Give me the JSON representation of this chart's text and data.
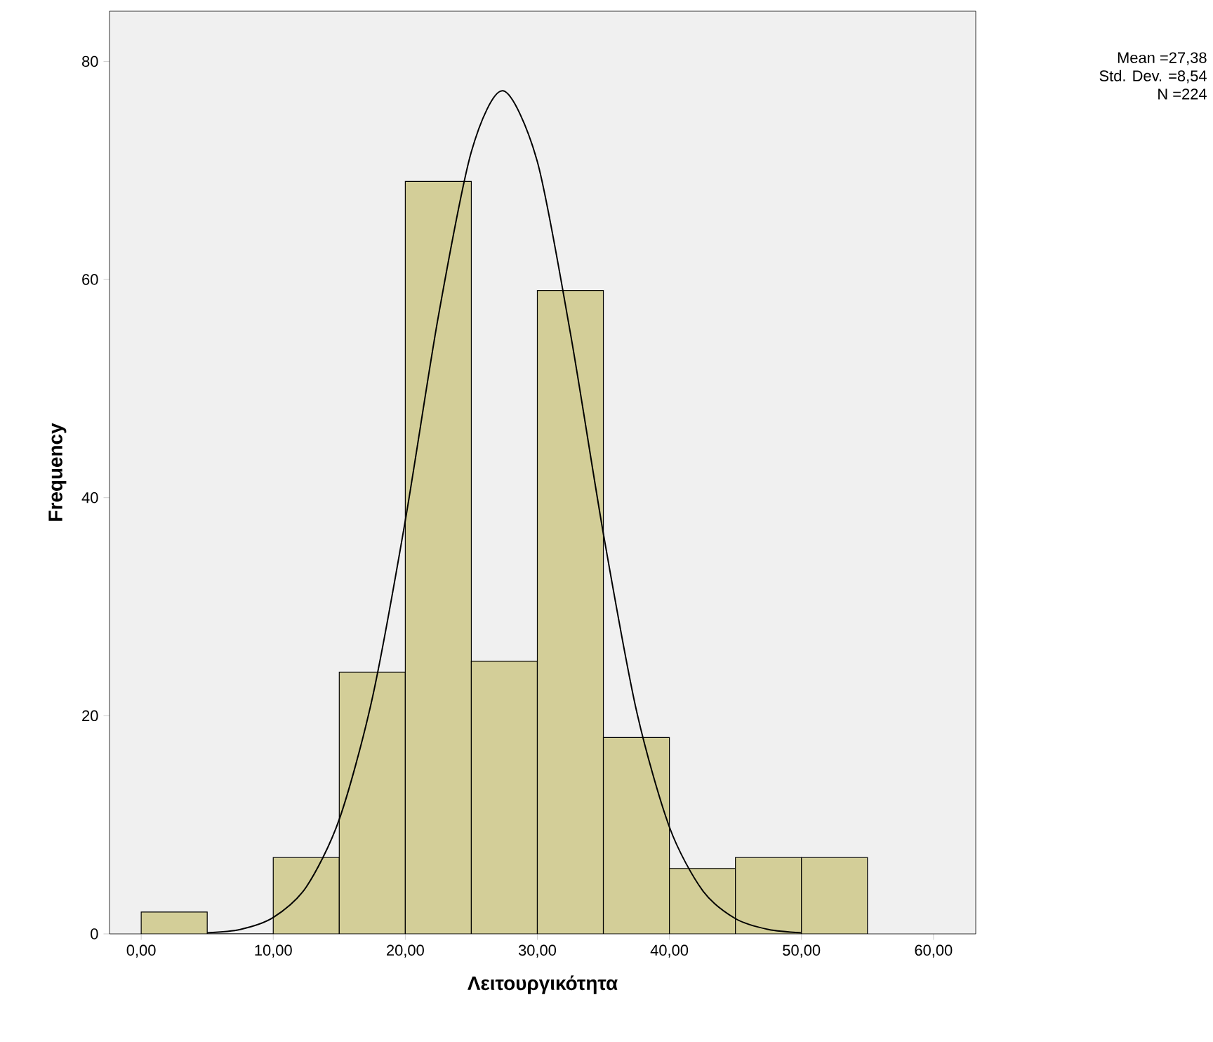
{
  "chart_data": {
    "type": "histogram",
    "xlabel": "Λειτουργικότητα",
    "ylabel": "Frequency",
    "annotations": [
      "Mean =27,38",
      "Std. Dev. =8,54",
      "N =224"
    ],
    "xlim": [
      -2.4,
      63.2
    ],
    "ylim": [
      0,
      84.6
    ],
    "xticks": [
      {
        "value": 0,
        "label": "0,00"
      },
      {
        "value": 10,
        "label": "10,00"
      },
      {
        "value": 20,
        "label": "20,00"
      },
      {
        "value": 30,
        "label": "30,00"
      },
      {
        "value": 40,
        "label": "40,00"
      },
      {
        "value": 50,
        "label": "50,00"
      },
      {
        "value": 60,
        "label": "60,00"
      }
    ],
    "yticks": [
      0,
      20,
      40,
      60,
      80
    ],
    "series": [
      {
        "color": "#d3ce98",
        "bins": [
          0,
          5,
          10,
          15,
          20,
          25,
          30,
          35,
          40,
          45,
          50,
          55
        ],
        "values": [
          2,
          0,
          7,
          24,
          69,
          25,
          59,
          18,
          6,
          7,
          7
        ]
      },
      {
        "type": "line",
        "color": "#000000",
        "x": [
          5,
          7.5,
          10,
          12.5,
          15,
          17.5,
          20,
          22.5,
          25,
          27.4,
          30,
          32.5,
          35,
          37.5,
          40,
          42.5,
          45,
          47.5,
          50
        ],
        "values": [
          0.1,
          0.4,
          1.5,
          4.3,
          10.5,
          21.6,
          37.9,
          56.6,
          71.7,
          77.3,
          70.8,
          55.1,
          36.7,
          20.5,
          9.8,
          4.0,
          1.4,
          0.4,
          0.1
        ]
      }
    ]
  }
}
